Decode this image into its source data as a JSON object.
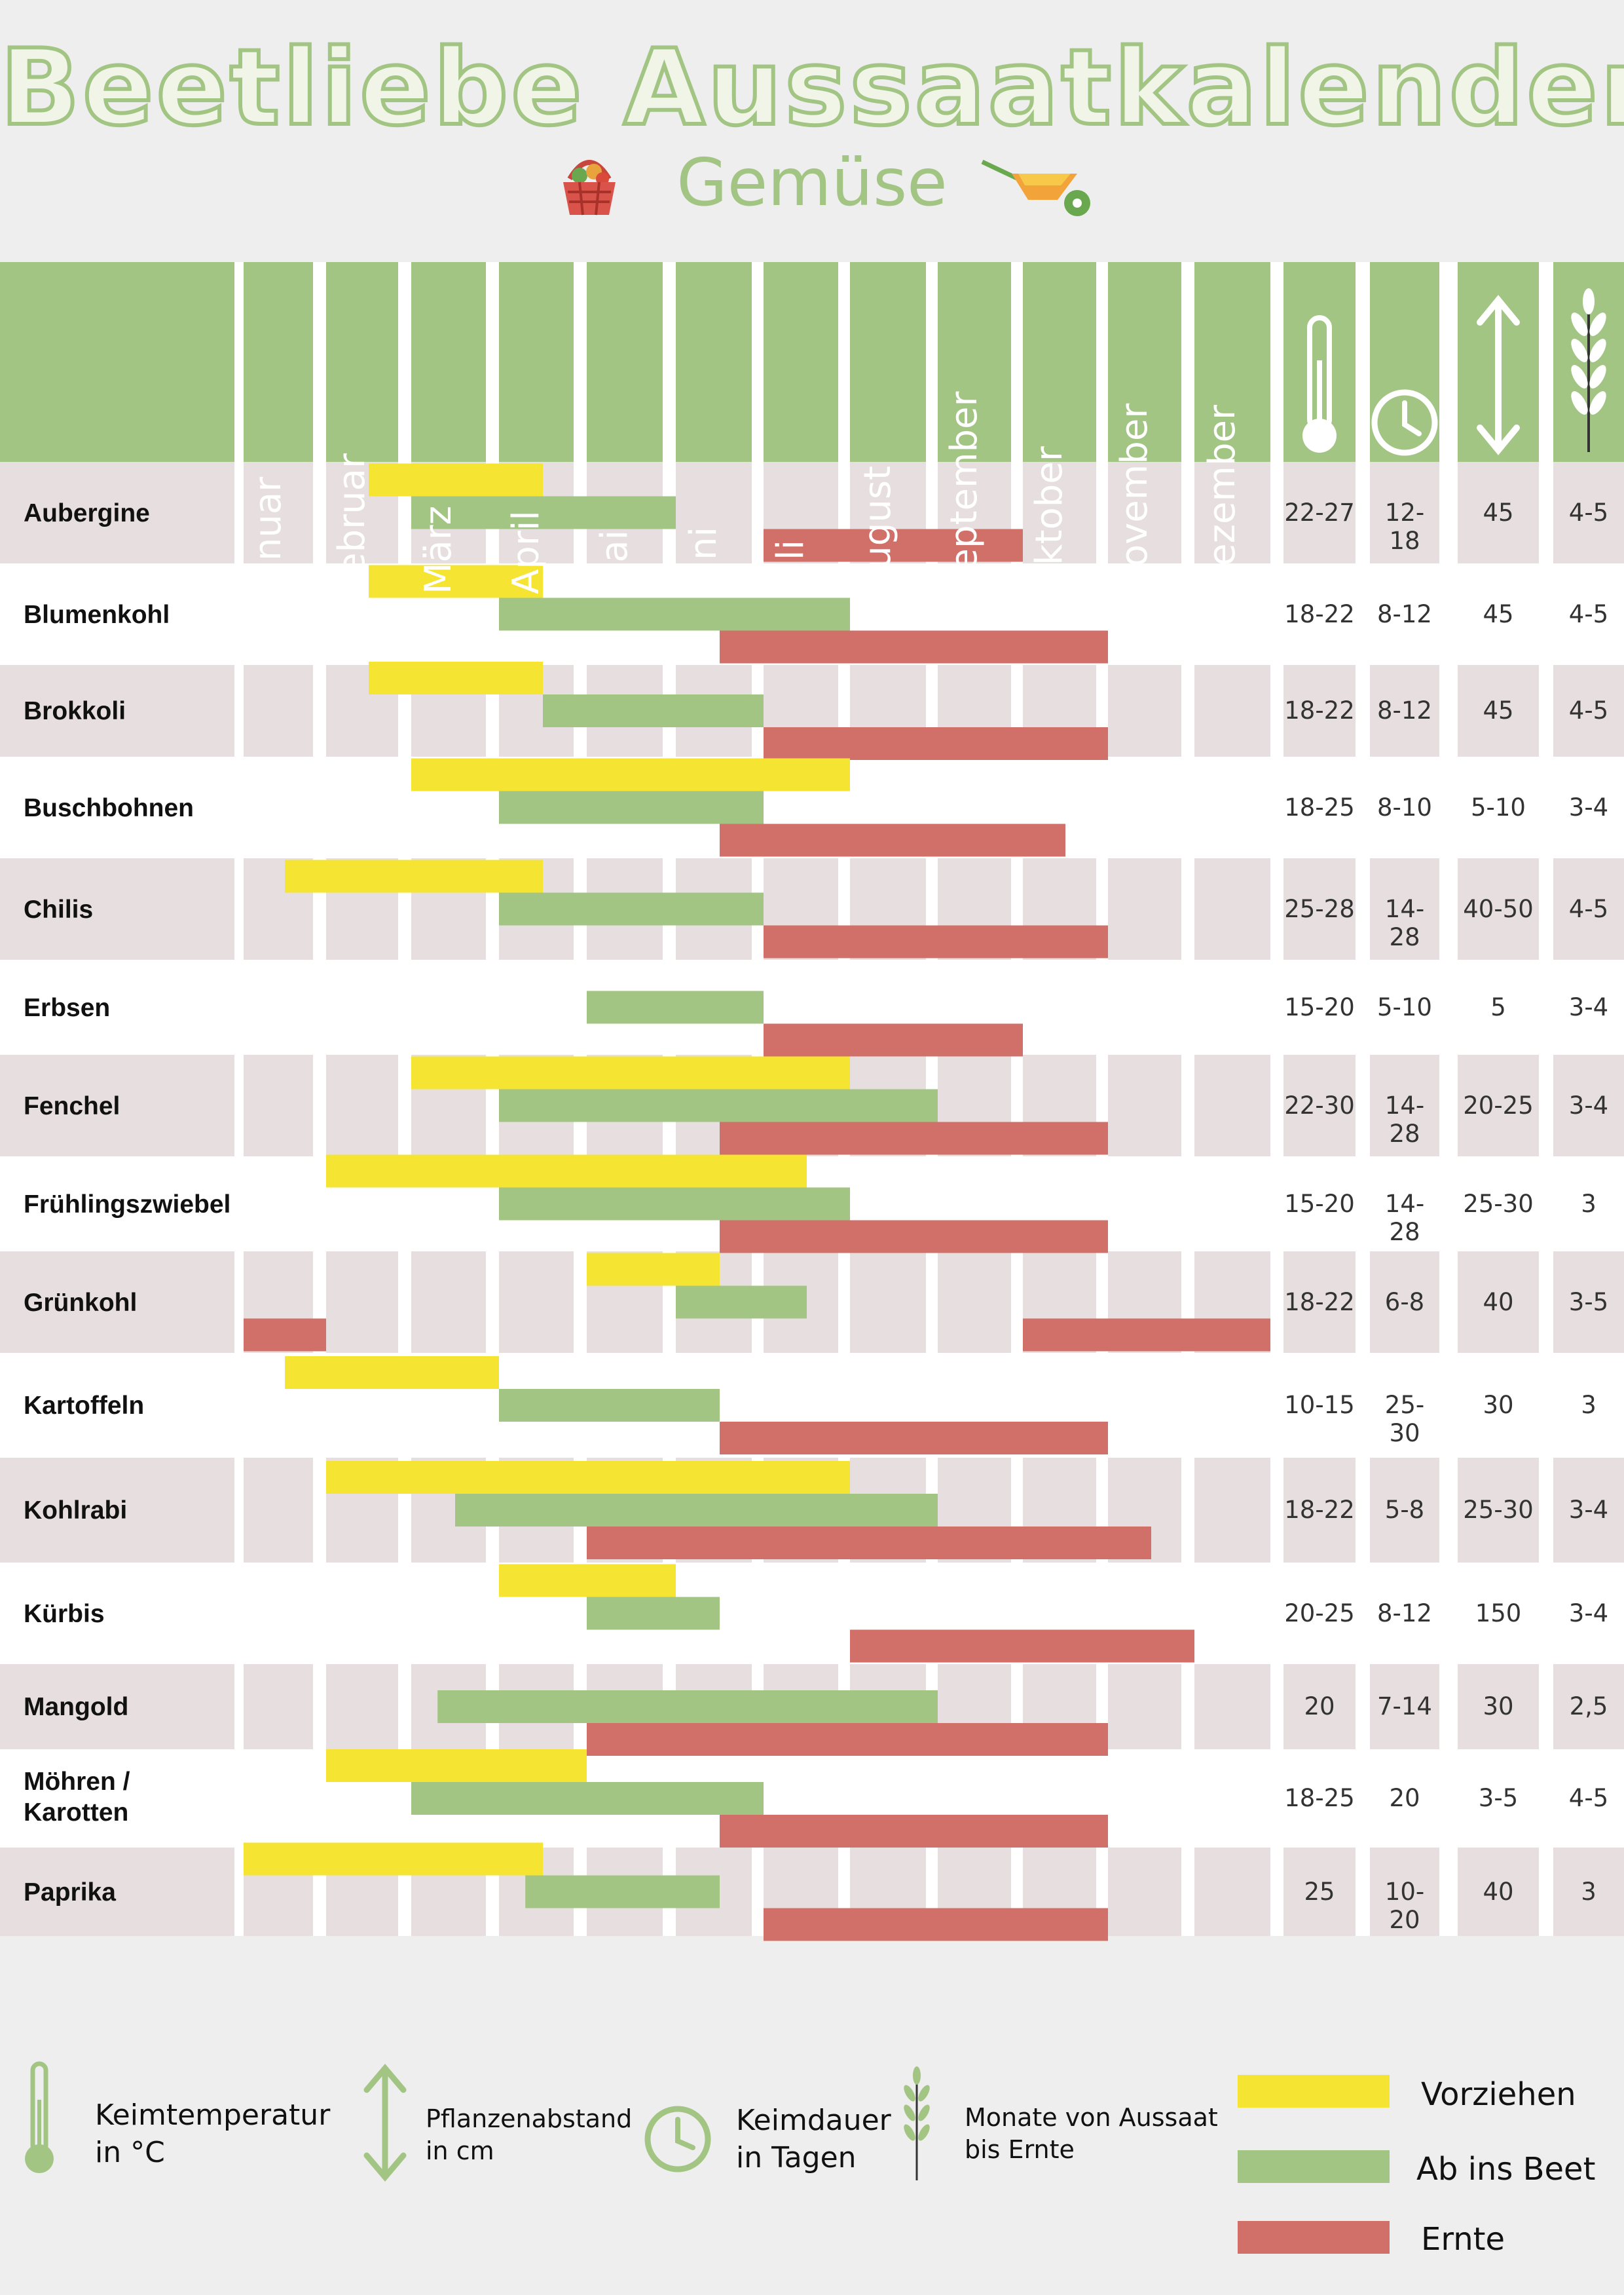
{
  "header": {
    "title": "Beetliebe Aussaatkalender",
    "subtitle": "Gemüse"
  },
  "colors": {
    "green": "#a2c584",
    "yellow": "#f6e433",
    "red": "#d17068",
    "row_shaded": "#e7dfdf",
    "row_plain": "#ffffff",
    "grid": "#ffffff"
  },
  "icons": {
    "basket": "basket-icon",
    "wheelbarrow": "wheelbarrow-icon",
    "temperature": "thermometer-icon",
    "time": "clock-icon",
    "spacing": "double-arrow-icon",
    "months": "wheat-icon"
  },
  "chart_data": {
    "type": "gantt",
    "months": [
      "Januar",
      "Februar",
      "März",
      "April",
      "Mai",
      "Juni",
      "Juli",
      "August",
      "September",
      "Oktober",
      "November",
      "Dezember"
    ],
    "x_unit": "months (1 = Anfang Januar, 13 = Ende Dezember)",
    "series": [
      {
        "name": "Vorziehen",
        "color": "#f6e433"
      },
      {
        "name": "Ab ins Beet",
        "color": "#a2c584"
      },
      {
        "name": "Ernte",
        "color": "#d17068"
      }
    ],
    "rows": [
      {
        "name": "Aubergine",
        "vorziehen": [
          [
            2.5,
            4.5
          ]
        ],
        "beet": [
          [
            3.0,
            6.0
          ]
        ],
        "ernte": [
          [
            7.0,
            10.0
          ]
        ],
        "temp": "22-27",
        "keimdauer": "12-18",
        "abstand": "45",
        "monate": "4-5"
      },
      {
        "name": "Blumenkohl",
        "vorziehen": [
          [
            2.5,
            4.5
          ]
        ],
        "beet": [
          [
            4.0,
            8.0
          ]
        ],
        "ernte": [
          [
            6.5,
            11.0
          ]
        ],
        "temp": "18-22",
        "keimdauer": "8-12",
        "abstand": "45",
        "monate": "4-5"
      },
      {
        "name": "Brokkoli",
        "vorziehen": [
          [
            2.5,
            4.5
          ]
        ],
        "beet": [
          [
            4.5,
            7.0
          ]
        ],
        "ernte": [
          [
            7.0,
            11.0
          ]
        ],
        "temp": "18-22",
        "keimdauer": "8-12",
        "abstand": "45",
        "monate": "4-5"
      },
      {
        "name": "Buschbohnen",
        "vorziehen": [
          [
            3.0,
            8.0
          ]
        ],
        "beet": [
          [
            4.0,
            7.0
          ]
        ],
        "ernte": [
          [
            6.5,
            10.5
          ]
        ],
        "temp": "18-25",
        "keimdauer": "8-10",
        "abstand": "5-10",
        "monate": "3-4"
      },
      {
        "name": "Chilis",
        "vorziehen": [
          [
            1.5,
            4.5
          ]
        ],
        "beet": [
          [
            4.0,
            7.0
          ]
        ],
        "ernte": [
          [
            7.0,
            11.0
          ]
        ],
        "temp": "25-28",
        "keimdauer": "14-28",
        "abstand": "40-50",
        "monate": "4-5"
      },
      {
        "name": "Erbsen",
        "vorziehen": [],
        "beet": [
          [
            5.0,
            7.0
          ]
        ],
        "ernte": [
          [
            7.0,
            10.0
          ]
        ],
        "temp": "15-20",
        "keimdauer": "5-10",
        "abstand": "5",
        "monate": "3-4"
      },
      {
        "name": "Fenchel",
        "vorziehen": [
          [
            3.0,
            8.0
          ]
        ],
        "beet": [
          [
            4.0,
            9.0
          ]
        ],
        "ernte": [
          [
            6.5,
            11.0
          ]
        ],
        "temp": "22-30",
        "keimdauer": "14-28",
        "abstand": "20-25",
        "monate": "3-4"
      },
      {
        "name": "Frühlingszwiebel",
        "vorziehen": [
          [
            2.0,
            7.5
          ]
        ],
        "beet": [
          [
            4.0,
            8.0
          ]
        ],
        "ernte": [
          [
            6.5,
            11.0
          ]
        ],
        "temp": "15-20",
        "keimdauer": "14-28",
        "abstand": "25-30",
        "monate": "3"
      },
      {
        "name": "Grünkohl",
        "vorziehen": [
          [
            5.0,
            6.5
          ]
        ],
        "beet": [
          [
            6.0,
            7.5
          ]
        ],
        "ernte": [
          [
            1.0,
            2.0
          ],
          [
            10.0,
            13.0
          ]
        ],
        "temp": "18-22",
        "keimdauer": "6-8",
        "abstand": "40",
        "monate": "3-5"
      },
      {
        "name": "Kartoffeln",
        "vorziehen": [
          [
            1.5,
            4.0
          ]
        ],
        "beet": [
          [
            4.0,
            6.5
          ]
        ],
        "ernte": [
          [
            6.5,
            11.0
          ]
        ],
        "temp": "10-15",
        "keimdauer": "25-30",
        "abstand": "30",
        "monate": "3"
      },
      {
        "name": "Kohlrabi",
        "vorziehen": [
          [
            2.0,
            8.0
          ]
        ],
        "beet": [
          [
            3.5,
            9.0
          ]
        ],
        "ernte": [
          [
            5.0,
            11.5
          ]
        ],
        "temp": "18-22",
        "keimdauer": "5-8",
        "abstand": "25-30",
        "monate": "3-4"
      },
      {
        "name": "Kürbis",
        "vorziehen": [
          [
            4.0,
            6.0
          ]
        ],
        "beet": [
          [
            5.0,
            6.5
          ]
        ],
        "ernte": [
          [
            8.0,
            12.0
          ]
        ],
        "temp": "20-25",
        "keimdauer": "8-12",
        "abstand": "150",
        "monate": "3-4"
      },
      {
        "name": "Mangold",
        "vorziehen": [],
        "beet": [
          [
            3.3,
            9.0
          ]
        ],
        "ernte": [
          [
            5.0,
            11.0
          ]
        ],
        "temp": "20",
        "keimdauer": "7-14",
        "abstand": "30",
        "monate": "2,5"
      },
      {
        "name": "Möhren / Karotten",
        "vorziehen": [
          [
            2.0,
            5.0
          ]
        ],
        "beet": [
          [
            3.0,
            7.0
          ]
        ],
        "ernte": [
          [
            6.5,
            11.0
          ]
        ],
        "temp": "18-25",
        "keimdauer": "20",
        "abstand": "3-5",
        "monate": "4-5"
      },
      {
        "name": "Paprika",
        "vorziehen": [
          [
            1.0,
            4.5
          ]
        ],
        "beet": [
          [
            4.3,
            6.5
          ]
        ],
        "ernte": [
          [
            7.0,
            11.0
          ]
        ],
        "temp": "25",
        "keimdauer": "10-20",
        "abstand": "40",
        "monate": "3"
      }
    ]
  },
  "legend": {
    "temp_line1": "Keimtemperatur",
    "temp_line2": "in  °C",
    "spacing_line1": "Pflanzenabstand",
    "spacing_line2": "in cm",
    "time_line1": "Keimdauer",
    "time_line2": "in Tagen",
    "months_line1": "Monate von Aussaat",
    "months_line2": "bis Ernte",
    "vorziehen": "Vorziehen",
    "beet": "Ab ins Beet",
    "ernte": "Ernte"
  }
}
